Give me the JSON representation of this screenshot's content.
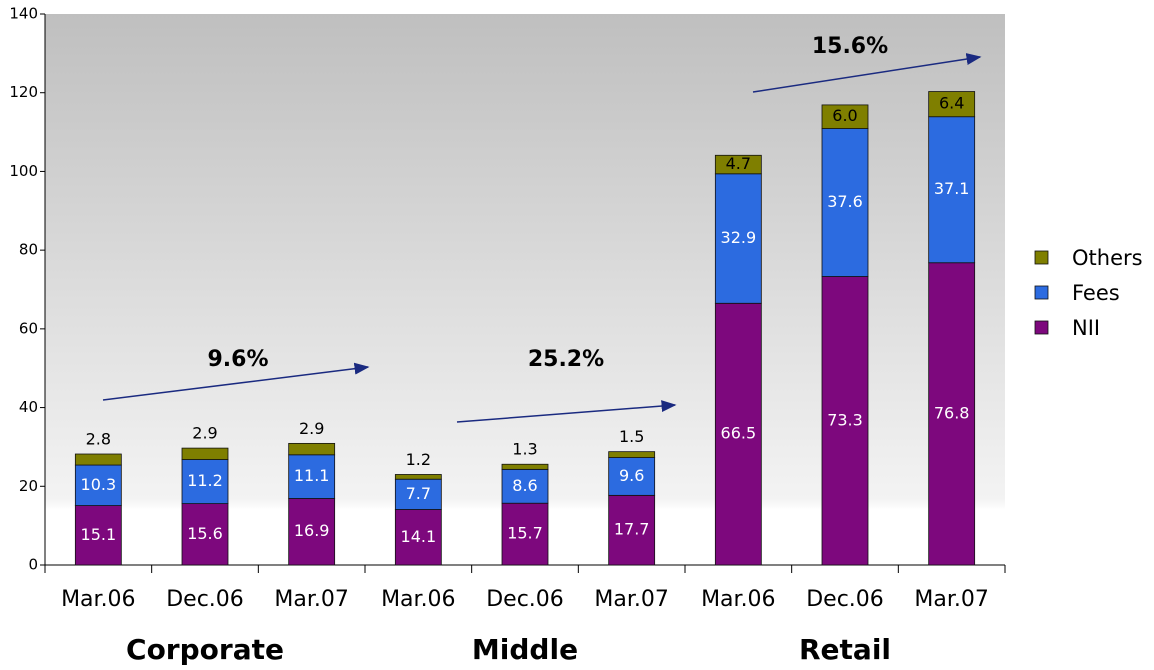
{
  "chart_data": {
    "type": "stacked_bar",
    "categories": [
      "Mar.06",
      "Dec.06",
      "Mar.07",
      "Mar.06",
      "Dec.06",
      "Mar.07",
      "Mar.06",
      "Dec.06",
      "Mar.07"
    ],
    "groups": [
      {
        "name": "Corporate",
        "size": 3
      },
      {
        "name": "Middle",
        "size": 3
      },
      {
        "name": "Retail",
        "size": 3
      }
    ],
    "series": [
      {
        "name": "NII",
        "color": "#7d087d",
        "values": [
          15.1,
          15.6,
          16.9,
          14.1,
          15.7,
          17.7,
          66.5,
          73.3,
          76.8
        ]
      },
      {
        "name": "Fees",
        "color": "#2c6be0",
        "values": [
          10.3,
          11.2,
          11.1,
          7.7,
          8.6,
          9.6,
          32.9,
          37.6,
          37.1
        ]
      },
      {
        "name": "Others",
        "color": "#7f7f00",
        "values": [
          2.8,
          2.9,
          2.9,
          1.2,
          1.3,
          1.5,
          4.7,
          6.0,
          6.4
        ],
        "value_labels": [
          "2.8",
          "2.9",
          "2.9",
          "1.2",
          "1.3",
          "1.5",
          "4.7",
          "6.0",
          "6.4"
        ]
      }
    ],
    "annotations": [
      "9.6%",
      "25.2%",
      "15.6%"
    ],
    "ylim": [
      0,
      140
    ],
    "yticks": [
      0,
      20,
      40,
      60,
      80,
      100,
      120,
      140
    ],
    "legend": "right",
    "grid": false
  }
}
